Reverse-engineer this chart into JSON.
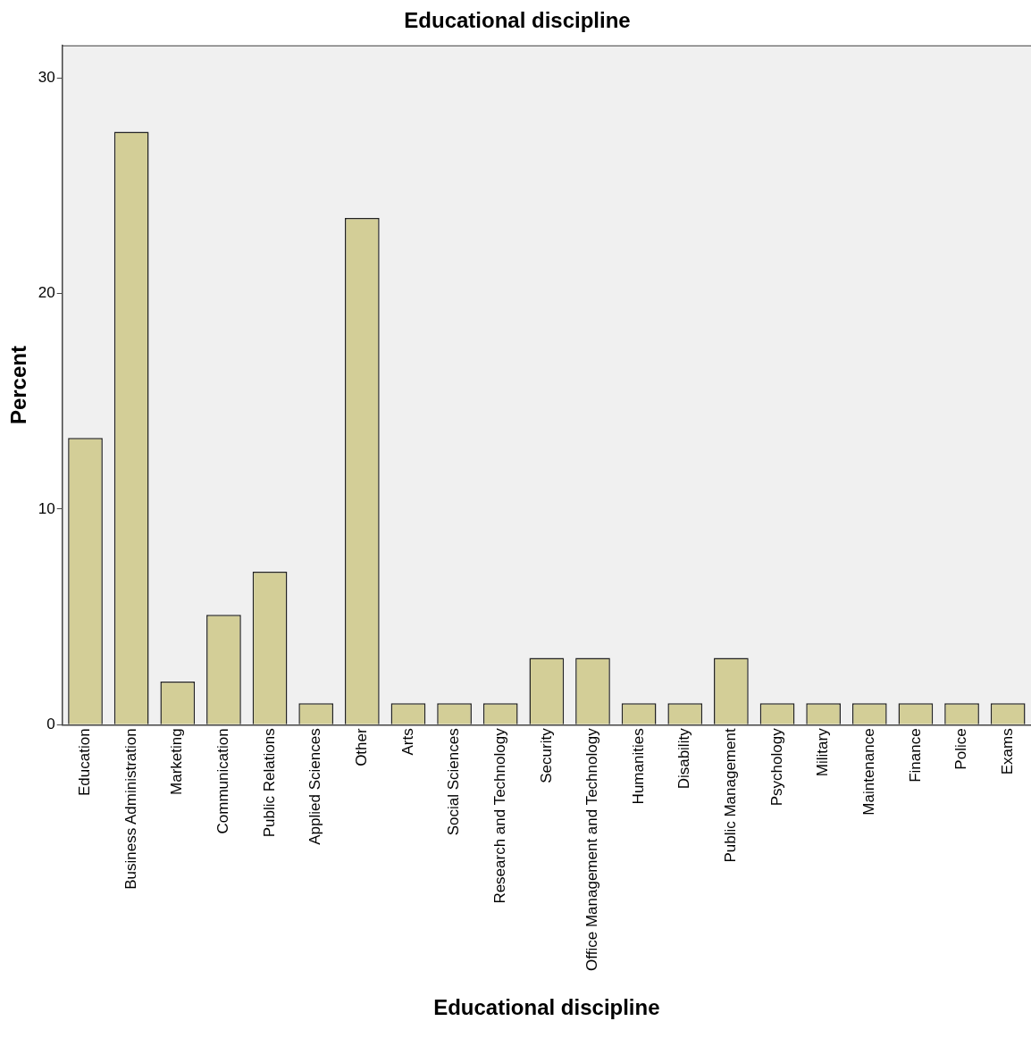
{
  "chart_data": {
    "type": "bar",
    "title": "Educational discipline",
    "xlabel": "Educational discipline",
    "ylabel": "Percent",
    "categories": [
      "Education",
      "Business Administration",
      "Marketing",
      "Communication",
      "Public Relations",
      "Applied Sciences",
      "Other",
      "Arts",
      "Social Sciences",
      "Research and Technology",
      "Security",
      "Office Management and Technology",
      "Humanities",
      "Disability",
      "Public Management",
      "Psychology",
      "Military",
      "Maintenance",
      "Finance",
      "Police",
      "Exams"
    ],
    "values": [
      13.3,
      27.5,
      2.0,
      5.1,
      7.1,
      1.0,
      23.5,
      1.0,
      1.0,
      1.0,
      3.1,
      3.1,
      1.0,
      1.0,
      3.1,
      1.0,
      1.0,
      1.0,
      1.0,
      1.0,
      1.0
    ],
    "color": "#d3ce97",
    "ylim": [
      0,
      31.5
    ],
    "yticks": [
      0,
      10,
      20,
      30
    ],
    "grid": false,
    "legend": false
  }
}
